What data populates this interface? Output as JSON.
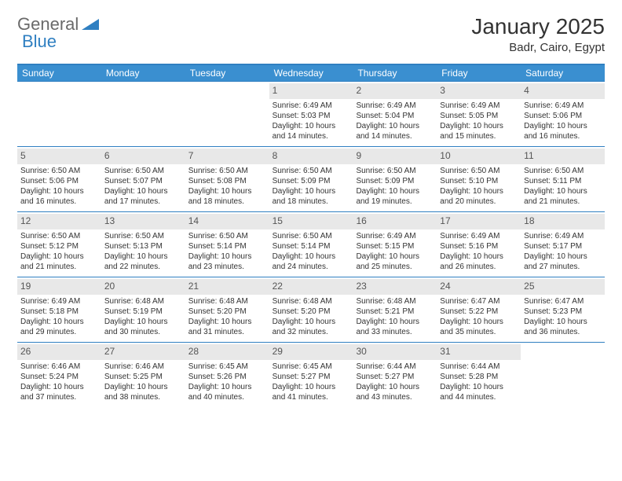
{
  "logo": {
    "text1": "General",
    "text2": "Blue"
  },
  "title": "January 2025",
  "location": "Badr, Cairo, Egypt",
  "colors": {
    "header_bar": "#3a8fd0",
    "border": "#2f7fc1",
    "daynum_bg": "#e8e8e8",
    "text": "#333333",
    "logo_gray": "#6a6a6a",
    "logo_blue": "#2f7fc1",
    "background": "#ffffff"
  },
  "weekdays": [
    "Sunday",
    "Monday",
    "Tuesday",
    "Wednesday",
    "Thursday",
    "Friday",
    "Saturday"
  ],
  "weeks": [
    [
      {
        "n": "",
        "sunrise": "",
        "sunset": "",
        "day": ""
      },
      {
        "n": "",
        "sunrise": "",
        "sunset": "",
        "day": ""
      },
      {
        "n": "",
        "sunrise": "",
        "sunset": "",
        "day": ""
      },
      {
        "n": "1",
        "sunrise": "Sunrise: 6:49 AM",
        "sunset": "Sunset: 5:03 PM",
        "day": "Daylight: 10 hours and 14 minutes."
      },
      {
        "n": "2",
        "sunrise": "Sunrise: 6:49 AM",
        "sunset": "Sunset: 5:04 PM",
        "day": "Daylight: 10 hours and 14 minutes."
      },
      {
        "n": "3",
        "sunrise": "Sunrise: 6:49 AM",
        "sunset": "Sunset: 5:05 PM",
        "day": "Daylight: 10 hours and 15 minutes."
      },
      {
        "n": "4",
        "sunrise": "Sunrise: 6:49 AM",
        "sunset": "Sunset: 5:06 PM",
        "day": "Daylight: 10 hours and 16 minutes."
      }
    ],
    [
      {
        "n": "5",
        "sunrise": "Sunrise: 6:50 AM",
        "sunset": "Sunset: 5:06 PM",
        "day": "Daylight: 10 hours and 16 minutes."
      },
      {
        "n": "6",
        "sunrise": "Sunrise: 6:50 AM",
        "sunset": "Sunset: 5:07 PM",
        "day": "Daylight: 10 hours and 17 minutes."
      },
      {
        "n": "7",
        "sunrise": "Sunrise: 6:50 AM",
        "sunset": "Sunset: 5:08 PM",
        "day": "Daylight: 10 hours and 18 minutes."
      },
      {
        "n": "8",
        "sunrise": "Sunrise: 6:50 AM",
        "sunset": "Sunset: 5:09 PM",
        "day": "Daylight: 10 hours and 18 minutes."
      },
      {
        "n": "9",
        "sunrise": "Sunrise: 6:50 AM",
        "sunset": "Sunset: 5:09 PM",
        "day": "Daylight: 10 hours and 19 minutes."
      },
      {
        "n": "10",
        "sunrise": "Sunrise: 6:50 AM",
        "sunset": "Sunset: 5:10 PM",
        "day": "Daylight: 10 hours and 20 minutes."
      },
      {
        "n": "11",
        "sunrise": "Sunrise: 6:50 AM",
        "sunset": "Sunset: 5:11 PM",
        "day": "Daylight: 10 hours and 21 minutes."
      }
    ],
    [
      {
        "n": "12",
        "sunrise": "Sunrise: 6:50 AM",
        "sunset": "Sunset: 5:12 PM",
        "day": "Daylight: 10 hours and 21 minutes."
      },
      {
        "n": "13",
        "sunrise": "Sunrise: 6:50 AM",
        "sunset": "Sunset: 5:13 PM",
        "day": "Daylight: 10 hours and 22 minutes."
      },
      {
        "n": "14",
        "sunrise": "Sunrise: 6:50 AM",
        "sunset": "Sunset: 5:14 PM",
        "day": "Daylight: 10 hours and 23 minutes."
      },
      {
        "n": "15",
        "sunrise": "Sunrise: 6:50 AM",
        "sunset": "Sunset: 5:14 PM",
        "day": "Daylight: 10 hours and 24 minutes."
      },
      {
        "n": "16",
        "sunrise": "Sunrise: 6:49 AM",
        "sunset": "Sunset: 5:15 PM",
        "day": "Daylight: 10 hours and 25 minutes."
      },
      {
        "n": "17",
        "sunrise": "Sunrise: 6:49 AM",
        "sunset": "Sunset: 5:16 PM",
        "day": "Daylight: 10 hours and 26 minutes."
      },
      {
        "n": "18",
        "sunrise": "Sunrise: 6:49 AM",
        "sunset": "Sunset: 5:17 PM",
        "day": "Daylight: 10 hours and 27 minutes."
      }
    ],
    [
      {
        "n": "19",
        "sunrise": "Sunrise: 6:49 AM",
        "sunset": "Sunset: 5:18 PM",
        "day": "Daylight: 10 hours and 29 minutes."
      },
      {
        "n": "20",
        "sunrise": "Sunrise: 6:48 AM",
        "sunset": "Sunset: 5:19 PM",
        "day": "Daylight: 10 hours and 30 minutes."
      },
      {
        "n": "21",
        "sunrise": "Sunrise: 6:48 AM",
        "sunset": "Sunset: 5:20 PM",
        "day": "Daylight: 10 hours and 31 minutes."
      },
      {
        "n": "22",
        "sunrise": "Sunrise: 6:48 AM",
        "sunset": "Sunset: 5:20 PM",
        "day": "Daylight: 10 hours and 32 minutes."
      },
      {
        "n": "23",
        "sunrise": "Sunrise: 6:48 AM",
        "sunset": "Sunset: 5:21 PM",
        "day": "Daylight: 10 hours and 33 minutes."
      },
      {
        "n": "24",
        "sunrise": "Sunrise: 6:47 AM",
        "sunset": "Sunset: 5:22 PM",
        "day": "Daylight: 10 hours and 35 minutes."
      },
      {
        "n": "25",
        "sunrise": "Sunrise: 6:47 AM",
        "sunset": "Sunset: 5:23 PM",
        "day": "Daylight: 10 hours and 36 minutes."
      }
    ],
    [
      {
        "n": "26",
        "sunrise": "Sunrise: 6:46 AM",
        "sunset": "Sunset: 5:24 PM",
        "day": "Daylight: 10 hours and 37 minutes."
      },
      {
        "n": "27",
        "sunrise": "Sunrise: 6:46 AM",
        "sunset": "Sunset: 5:25 PM",
        "day": "Daylight: 10 hours and 38 minutes."
      },
      {
        "n": "28",
        "sunrise": "Sunrise: 6:45 AM",
        "sunset": "Sunset: 5:26 PM",
        "day": "Daylight: 10 hours and 40 minutes."
      },
      {
        "n": "29",
        "sunrise": "Sunrise: 6:45 AM",
        "sunset": "Sunset: 5:27 PM",
        "day": "Daylight: 10 hours and 41 minutes."
      },
      {
        "n": "30",
        "sunrise": "Sunrise: 6:44 AM",
        "sunset": "Sunset: 5:27 PM",
        "day": "Daylight: 10 hours and 43 minutes."
      },
      {
        "n": "31",
        "sunrise": "Sunrise: 6:44 AM",
        "sunset": "Sunset: 5:28 PM",
        "day": "Daylight: 10 hours and 44 minutes."
      },
      {
        "n": "",
        "sunrise": "",
        "sunset": "",
        "day": ""
      }
    ]
  ]
}
